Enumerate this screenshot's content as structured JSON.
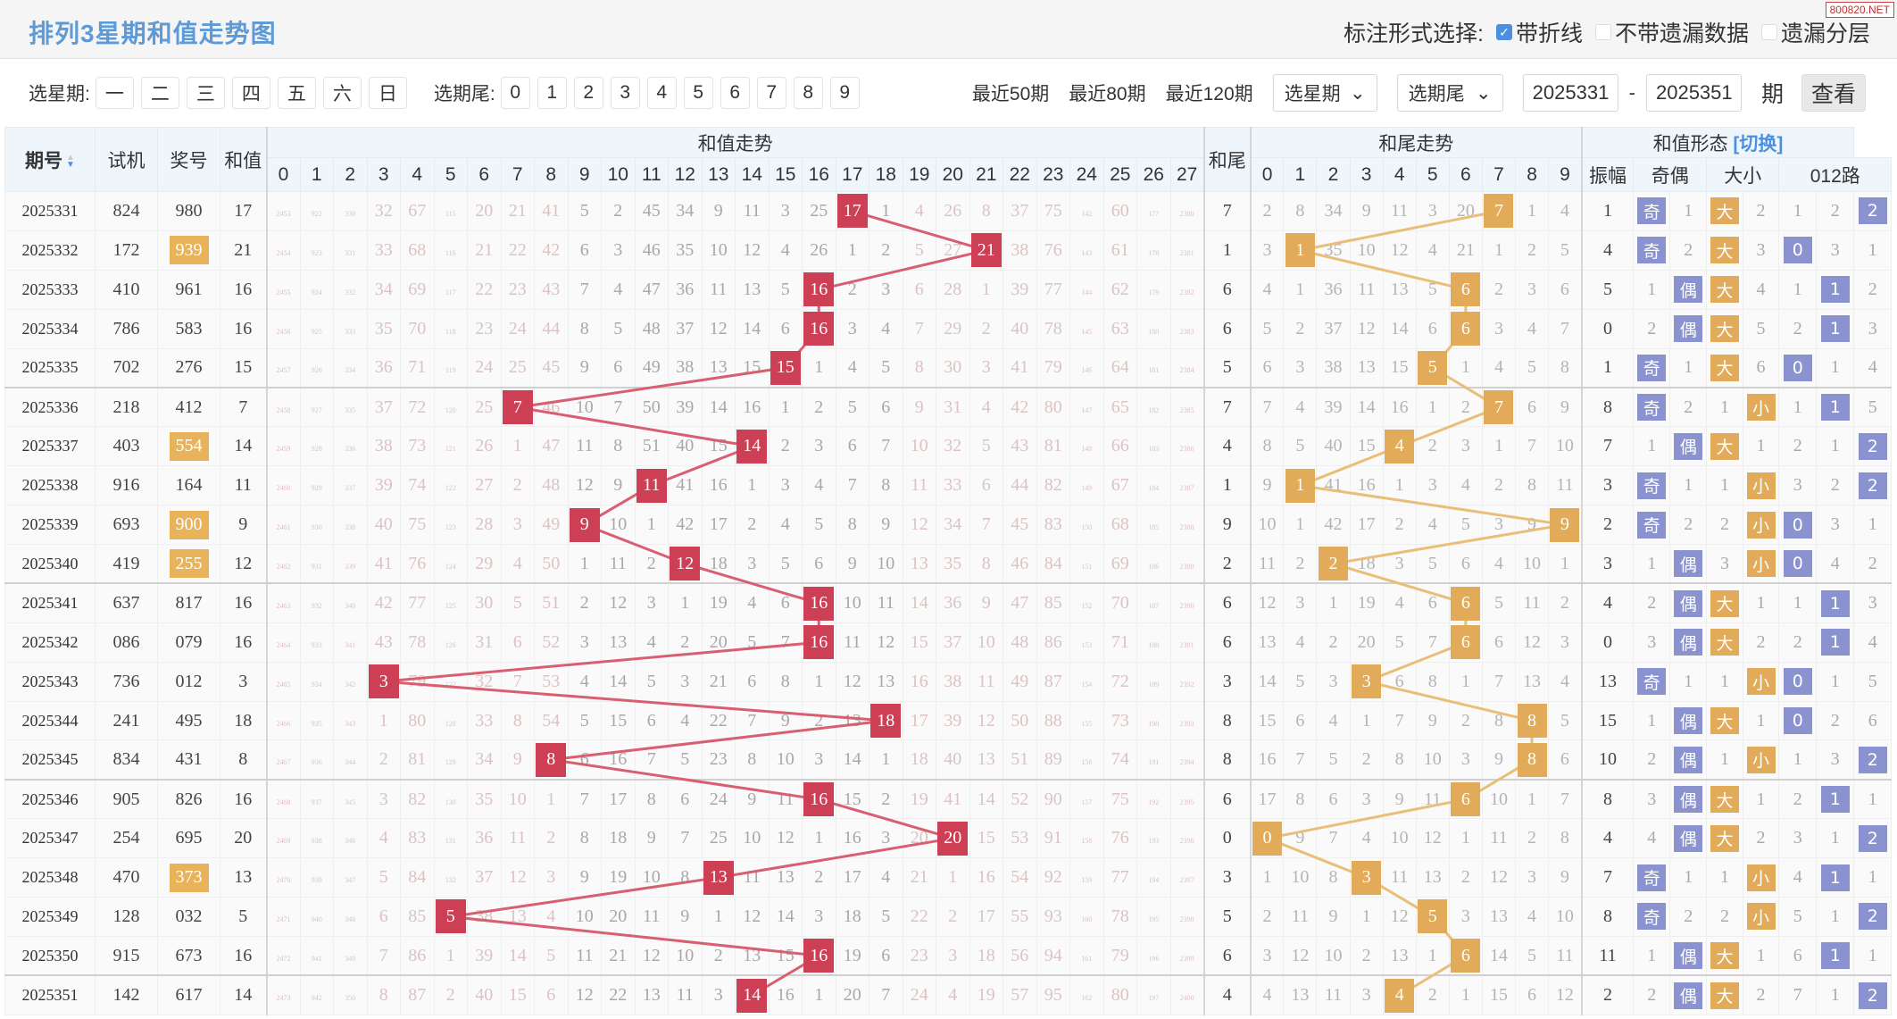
{
  "title": "排列3星期和值走势图",
  "watermark": "800820.NET",
  "marks": {
    "label": "标注形式选择:",
    "options": [
      {
        "label": "带折线",
        "checked": true
      },
      {
        "label": "不带遗漏数据",
        "checked": false
      },
      {
        "label": "遗漏分层",
        "checked": false
      }
    ]
  },
  "filter": {
    "week_label": "选星期:",
    "weekdays": [
      "一",
      "二",
      "三",
      "四",
      "五",
      "六",
      "日"
    ],
    "tail_label": "选期尾:",
    "tails": [
      "0",
      "1",
      "2",
      "3",
      "4",
      "5",
      "6",
      "7",
      "8",
      "9"
    ],
    "recent": [
      "最近50期",
      "最近80期",
      "最近120期"
    ],
    "week_select": "选星期",
    "tail_select": "选期尾",
    "from": "2025331",
    "dash": "-",
    "to": "2025351",
    "unit": "期",
    "view": "查看"
  },
  "headers": {
    "period": "期号",
    "trial": "试机",
    "award": "奖号",
    "sum": "和值",
    "sum_trend": "和值走势",
    "sum_cols": [
      "0",
      "1",
      "2",
      "3",
      "4",
      "5",
      "6",
      "7",
      "8",
      "9",
      "10",
      "11",
      "12",
      "13",
      "14",
      "15",
      "16",
      "17",
      "18",
      "19",
      "20",
      "21",
      "22",
      "23",
      "24",
      "25",
      "26",
      "27"
    ],
    "tail": "和尾",
    "tail_trend": "和尾走势",
    "tail_cols": [
      "0",
      "1",
      "2",
      "3",
      "4",
      "5",
      "6",
      "7",
      "8",
      "9"
    ],
    "shape": "和值形态",
    "switch": "[切换]",
    "amplitude": "振幅",
    "odd_even": "奇偶",
    "big_small": "大小",
    "road": "012路"
  },
  "colors": {
    "sum_hit": "#cc3f55",
    "tail_hit": "#e2ab5a",
    "sum_line": "#d75f70",
    "tail_line": "#e9be78",
    "shape_blue": "#8a93cf",
    "award_pair": "#e8b35a",
    "title": "#5d9ad6"
  },
  "rows": [
    {
      "period": "2025331",
      "trial": "824",
      "award": "980",
      "pair": false,
      "sum": 17,
      "sum_trend": [
        2453,
        922,
        330,
        32,
        67,
        115,
        20,
        21,
        41,
        5,
        2,
        45,
        34,
        9,
        11,
        3,
        25,
        17,
        1,
        4,
        26,
        8,
        37,
        75,
        142,
        60,
        177,
        2380
      ],
      "tail": 7,
      "tail_trend": [
        2,
        8,
        34,
        9,
        11,
        3,
        20,
        7,
        1,
        4
      ],
      "amplitude": 1,
      "odd_even": [
        "奇",
        "1"
      ],
      "big_small": [
        "大",
        "2"
      ],
      "road": [
        "1",
        "2",
        "2"
      ],
      "road_hit": 2
    },
    {
      "period": "2025332",
      "trial": "172",
      "award": "939",
      "pair": true,
      "sum": 21,
      "sum_trend": [
        2454,
        923,
        331,
        33,
        68,
        116,
        21,
        22,
        42,
        6,
        3,
        46,
        35,
        10,
        12,
        4,
        26,
        1,
        2,
        5,
        27,
        21,
        38,
        76,
        143,
        61,
        178,
        2381
      ],
      "tail": 1,
      "tail_trend": [
        3,
        1,
        35,
        10,
        12,
        4,
        21,
        1,
        2,
        5
      ],
      "amplitude": 4,
      "odd_even": [
        "奇",
        "2"
      ],
      "big_small": [
        "大",
        "3"
      ],
      "road": [
        "0",
        "3",
        "1"
      ],
      "road_hit": 0
    },
    {
      "period": "2025333",
      "trial": "410",
      "award": "961",
      "pair": false,
      "sum": 16,
      "sum_trend": [
        2455,
        924,
        332,
        34,
        69,
        117,
        22,
        23,
        43,
        7,
        4,
        47,
        36,
        11,
        13,
        5,
        16,
        2,
        3,
        6,
        28,
        1,
        39,
        77,
        144,
        62,
        179,
        2382
      ],
      "tail": 6,
      "tail_trend": [
        4,
        1,
        36,
        11,
        13,
        5,
        6,
        2,
        3,
        6
      ],
      "amplitude": 5,
      "odd_even": [
        "1",
        "偶"
      ],
      "big_small": [
        "大",
        "4"
      ],
      "road": [
        "1",
        "1",
        "2"
      ],
      "road_hit": 1
    },
    {
      "period": "2025334",
      "trial": "786",
      "award": "583",
      "pair": false,
      "sum": 16,
      "sum_trend": [
        2456,
        925,
        333,
        35,
        70,
        118,
        23,
        24,
        44,
        8,
        5,
        48,
        37,
        12,
        14,
        6,
        16,
        3,
        4,
        7,
        29,
        2,
        40,
        78,
        145,
        63,
        180,
        2383
      ],
      "tail": 6,
      "tail_trend": [
        5,
        2,
        37,
        12,
        14,
        6,
        6,
        3,
        4,
        7
      ],
      "amplitude": 0,
      "odd_even": [
        "2",
        "偶"
      ],
      "big_small": [
        "大",
        "5"
      ],
      "road": [
        "2",
        "1",
        "3"
      ],
      "road_hit": 1
    },
    {
      "period": "2025335",
      "trial": "702",
      "award": "276",
      "pair": false,
      "sum": 15,
      "sum_trend": [
        2457,
        926,
        334,
        36,
        71,
        119,
        24,
        25,
        45,
        9,
        6,
        49,
        38,
        13,
        15,
        15,
        1,
        4,
        5,
        8,
        30,
        3,
        41,
        79,
        146,
        64,
        181,
        2384
      ],
      "tail": 5,
      "tail_trend": [
        6,
        3,
        38,
        13,
        15,
        5,
        1,
        4,
        5,
        8
      ],
      "amplitude": 1,
      "odd_even": [
        "奇",
        "1"
      ],
      "big_small": [
        "大",
        "6"
      ],
      "road": [
        "0",
        "1",
        "4"
      ],
      "road_hit": 0
    },
    {
      "period": "2025336",
      "trial": "218",
      "award": "412",
      "pair": false,
      "sum": 7,
      "sum_trend": [
        2458,
        927,
        335,
        37,
        72,
        120,
        25,
        7,
        46,
        10,
        7,
        50,
        39,
        14,
        16,
        1,
        2,
        5,
        6,
        9,
        31,
        4,
        42,
        80,
        147,
        65,
        182,
        2385
      ],
      "tail": 7,
      "tail_trend": [
        7,
        4,
        39,
        14,
        16,
        1,
        2,
        7,
        6,
        9
      ],
      "amplitude": 8,
      "odd_even": [
        "奇",
        "2"
      ],
      "big_small": [
        "1",
        "小"
      ],
      "road": [
        "1",
        "1",
        "5"
      ],
      "road_hit": 1
    },
    {
      "period": "2025337",
      "trial": "403",
      "award": "554",
      "pair": true,
      "sum": 14,
      "sum_trend": [
        2459,
        928,
        336,
        38,
        73,
        121,
        26,
        1,
        47,
        11,
        8,
        51,
        40,
        15,
        14,
        2,
        3,
        6,
        7,
        10,
        32,
        5,
        43,
        81,
        148,
        66,
        183,
        2386
      ],
      "tail": 4,
      "tail_trend": [
        8,
        5,
        40,
        15,
        4,
        2,
        3,
        1,
        7,
        10
      ],
      "amplitude": 7,
      "odd_even": [
        "1",
        "偶"
      ],
      "big_small": [
        "大",
        "1"
      ],
      "road": [
        "2",
        "1",
        "2"
      ],
      "road_hit": 2
    },
    {
      "period": "2025338",
      "trial": "916",
      "award": "164",
      "pair": false,
      "sum": 11,
      "sum_trend": [
        2460,
        929,
        337,
        39,
        74,
        122,
        27,
        2,
        48,
        12,
        9,
        11,
        41,
        16,
        1,
        3,
        4,
        7,
        8,
        11,
        33,
        6,
        44,
        82,
        149,
        67,
        184,
        2387
      ],
      "tail": 1,
      "tail_trend": [
        9,
        1,
        41,
        16,
        1,
        3,
        4,
        2,
        8,
        11
      ],
      "amplitude": 3,
      "odd_even": [
        "奇",
        "1"
      ],
      "big_small": [
        "1",
        "小"
      ],
      "road": [
        "3",
        "2",
        "2"
      ],
      "road_hit": 2
    },
    {
      "period": "2025339",
      "trial": "693",
      "award": "900",
      "pair": true,
      "sum": 9,
      "sum_trend": [
        2461,
        930,
        338,
        40,
        75,
        123,
        28,
        3,
        49,
        9,
        10,
        1,
        42,
        17,
        2,
        4,
        5,
        8,
        9,
        12,
        34,
        7,
        45,
        83,
        150,
        68,
        185,
        2388
      ],
      "tail": 9,
      "tail_trend": [
        10,
        1,
        42,
        17,
        2,
        4,
        5,
        3,
        9,
        9
      ],
      "amplitude": 2,
      "odd_even": [
        "奇",
        "2"
      ],
      "big_small": [
        "2",
        "小"
      ],
      "road": [
        "0",
        "3",
        "1"
      ],
      "road_hit": 0
    },
    {
      "period": "2025340",
      "trial": "419",
      "award": "255",
      "pair": true,
      "sum": 12,
      "sum_trend": [
        2462,
        931,
        339,
        41,
        76,
        124,
        29,
        4,
        50,
        1,
        11,
        2,
        12,
        18,
        3,
        5,
        6,
        9,
        10,
        13,
        35,
        8,
        46,
        84,
        151,
        69,
        186,
        2389
      ],
      "tail": 2,
      "tail_trend": [
        11,
        2,
        2,
        18,
        3,
        5,
        6,
        4,
        10,
        1
      ],
      "amplitude": 3,
      "odd_even": [
        "1",
        "偶"
      ],
      "big_small": [
        "3",
        "小"
      ],
      "road": [
        "0",
        "4",
        "2"
      ],
      "road_hit": 0
    },
    {
      "period": "2025341",
      "trial": "637",
      "award": "817",
      "pair": false,
      "sum": 16,
      "sum_trend": [
        2463,
        932,
        340,
        42,
        77,
        125,
        30,
        5,
        51,
        2,
        12,
        3,
        1,
        19,
        4,
        6,
        16,
        10,
        11,
        14,
        36,
        9,
        47,
        85,
        152,
        70,
        187,
        2390
      ],
      "tail": 6,
      "tail_trend": [
        12,
        3,
        1,
        19,
        4,
        6,
        6,
        5,
        11,
        2
      ],
      "amplitude": 4,
      "odd_even": [
        "2",
        "偶"
      ],
      "big_small": [
        "大",
        "1"
      ],
      "road": [
        "1",
        "1",
        "3"
      ],
      "road_hit": 1
    },
    {
      "period": "2025342",
      "trial": "086",
      "award": "079",
      "pair": false,
      "sum": 16,
      "sum_trend": [
        2464,
        933,
        341,
        43,
        78,
        126,
        31,
        6,
        52,
        3,
        13,
        4,
        2,
        20,
        5,
        7,
        16,
        11,
        12,
        15,
        37,
        10,
        48,
        86,
        153,
        71,
        188,
        2391
      ],
      "tail": 6,
      "tail_trend": [
        13,
        4,
        2,
        20,
        5,
        7,
        6,
        6,
        12,
        3
      ],
      "amplitude": 0,
      "odd_even": [
        "3",
        "偶"
      ],
      "big_small": [
        "大",
        "2"
      ],
      "road": [
        "2",
        "1",
        "4"
      ],
      "road_hit": 1
    },
    {
      "period": "2025343",
      "trial": "736",
      "award": "012",
      "pair": false,
      "sum": 3,
      "sum_trend": [
        2465,
        934,
        342,
        3,
        79,
        127,
        32,
        7,
        53,
        4,
        14,
        5,
        3,
        21,
        6,
        8,
        1,
        12,
        13,
        16,
        38,
        11,
        49,
        87,
        154,
        72,
        189,
        2392
      ],
      "tail": 3,
      "tail_trend": [
        14,
        5,
        3,
        3,
        6,
        8,
        1,
        7,
        13,
        4
      ],
      "amplitude": 13,
      "odd_even": [
        "奇",
        "1"
      ],
      "big_small": [
        "1",
        "小"
      ],
      "road": [
        "0",
        "1",
        "5"
      ],
      "road_hit": 0
    },
    {
      "period": "2025344",
      "trial": "241",
      "award": "495",
      "pair": false,
      "sum": 18,
      "sum_trend": [
        2466,
        935,
        343,
        1,
        80,
        128,
        33,
        8,
        54,
        5,
        15,
        6,
        4,
        22,
        7,
        9,
        2,
        13,
        18,
        17,
        39,
        12,
        50,
        88,
        155,
        73,
        190,
        2393
      ],
      "tail": 8,
      "tail_trend": [
        15,
        6,
        4,
        1,
        7,
        9,
        2,
        8,
        8,
        5
      ],
      "amplitude": 15,
      "odd_even": [
        "1",
        "偶"
      ],
      "big_small": [
        "大",
        "1"
      ],
      "road": [
        "0",
        "2",
        "6"
      ],
      "road_hit": 0
    },
    {
      "period": "2025345",
      "trial": "834",
      "award": "431",
      "pair": false,
      "sum": 8,
      "sum_trend": [
        2467,
        936,
        344,
        2,
        81,
        129,
        34,
        9,
        8,
        6,
        16,
        7,
        5,
        23,
        8,
        10,
        3,
        14,
        1,
        18,
        40,
        13,
        51,
        89,
        156,
        74,
        191,
        2394
      ],
      "tail": 8,
      "tail_trend": [
        16,
        7,
        5,
        2,
        8,
        10,
        3,
        9,
        8,
        6
      ],
      "amplitude": 10,
      "odd_even": [
        "2",
        "偶"
      ],
      "big_small": [
        "1",
        "小"
      ],
      "road": [
        "1",
        "3",
        "2"
      ],
      "road_hit": 2
    },
    {
      "period": "2025346",
      "trial": "905",
      "award": "826",
      "pair": false,
      "sum": 16,
      "sum_trend": [
        2468,
        937,
        345,
        3,
        82,
        130,
        35,
        10,
        1,
        7,
        17,
        8,
        6,
        24,
        9,
        11,
        16,
        15,
        2,
        19,
        41,
        14,
        52,
        90,
        157,
        75,
        192,
        2395
      ],
      "tail": 6,
      "tail_trend": [
        17,
        8,
        6,
        3,
        9,
        11,
        6,
        10,
        1,
        7
      ],
      "amplitude": 8,
      "odd_even": [
        "3",
        "偶"
      ],
      "big_small": [
        "大",
        "1"
      ],
      "road": [
        "2",
        "1",
        "1"
      ],
      "road_hit": 1
    },
    {
      "period": "2025347",
      "trial": "254",
      "award": "695",
      "pair": false,
      "sum": 20,
      "sum_trend": [
        2469,
        938,
        346,
        4,
        83,
        131,
        36,
        11,
        2,
        8,
        18,
        9,
        7,
        25,
        10,
        12,
        1,
        16,
        3,
        20,
        20,
        15,
        53,
        91,
        158,
        76,
        193,
        2396
      ],
      "tail": 0,
      "tail_trend": [
        0,
        9,
        7,
        4,
        10,
        12,
        1,
        11,
        2,
        8
      ],
      "amplitude": 4,
      "odd_even": [
        "4",
        "偶"
      ],
      "big_small": [
        "大",
        "2"
      ],
      "road": [
        "3",
        "1",
        "2"
      ],
      "road_hit": 2
    },
    {
      "period": "2025348",
      "trial": "470",
      "award": "373",
      "pair": true,
      "sum": 13,
      "sum_trend": [
        2470,
        939,
        347,
        5,
        84,
        132,
        37,
        12,
        3,
        9,
        19,
        10,
        8,
        13,
        11,
        13,
        2,
        17,
        4,
        21,
        1,
        16,
        54,
        92,
        159,
        77,
        194,
        2397
      ],
      "tail": 3,
      "tail_trend": [
        1,
        10,
        8,
        3,
        11,
        13,
        2,
        12,
        3,
        9
      ],
      "amplitude": 7,
      "odd_even": [
        "奇",
        "1"
      ],
      "big_small": [
        "1",
        "小"
      ],
      "road": [
        "4",
        "1",
        "1"
      ],
      "road_hit": 1
    },
    {
      "period": "2025349",
      "trial": "128",
      "award": "032",
      "pair": false,
      "sum": 5,
      "sum_trend": [
        2471,
        940,
        348,
        6,
        85,
        5,
        38,
        13,
        4,
        10,
        20,
        11,
        9,
        1,
        12,
        14,
        3,
        18,
        5,
        22,
        2,
        17,
        55,
        93,
        160,
        78,
        195,
        2398
      ],
      "tail": 5,
      "tail_trend": [
        2,
        11,
        9,
        1,
        12,
        5,
        3,
        13,
        4,
        10
      ],
      "amplitude": 8,
      "odd_even": [
        "奇",
        "2"
      ],
      "big_small": [
        "2",
        "小"
      ],
      "road": [
        "5",
        "1",
        "2"
      ],
      "road_hit": 2
    },
    {
      "period": "2025350",
      "trial": "915",
      "award": "673",
      "pair": false,
      "sum": 16,
      "sum_trend": [
        2472,
        941,
        349,
        7,
        86,
        1,
        39,
        14,
        5,
        11,
        21,
        12,
        10,
        2,
        13,
        15,
        16,
        19,
        6,
        23,
        3,
        18,
        56,
        94,
        161,
        79,
        196,
        2399
      ],
      "tail": 6,
      "tail_trend": [
        3,
        12,
        10,
        2,
        13,
        1,
        6,
        14,
        5,
        11
      ],
      "amplitude": 11,
      "odd_even": [
        "1",
        "偶"
      ],
      "big_small": [
        "大",
        "1"
      ],
      "road": [
        "6",
        "1",
        "1"
      ],
      "road_hit": 1
    },
    {
      "period": "2025351",
      "trial": "142",
      "award": "617",
      "pair": false,
      "sum": 14,
      "sum_trend": [
        2473,
        942,
        350,
        8,
        87,
        2,
        40,
        15,
        6,
        12,
        22,
        13,
        11,
        3,
        14,
        16,
        1,
        20,
        7,
        24,
        4,
        19,
        57,
        95,
        162,
        80,
        197,
        2400
      ],
      "tail": 4,
      "tail_trend": [
        4,
        13,
        11,
        3,
        4,
        2,
        1,
        15,
        6,
        12
      ],
      "amplitude": 2,
      "odd_even": [
        "2",
        "偶"
      ],
      "big_small": [
        "大",
        "2"
      ],
      "road": [
        "7",
        "1",
        "2"
      ],
      "road_hit": 2
    }
  ]
}
